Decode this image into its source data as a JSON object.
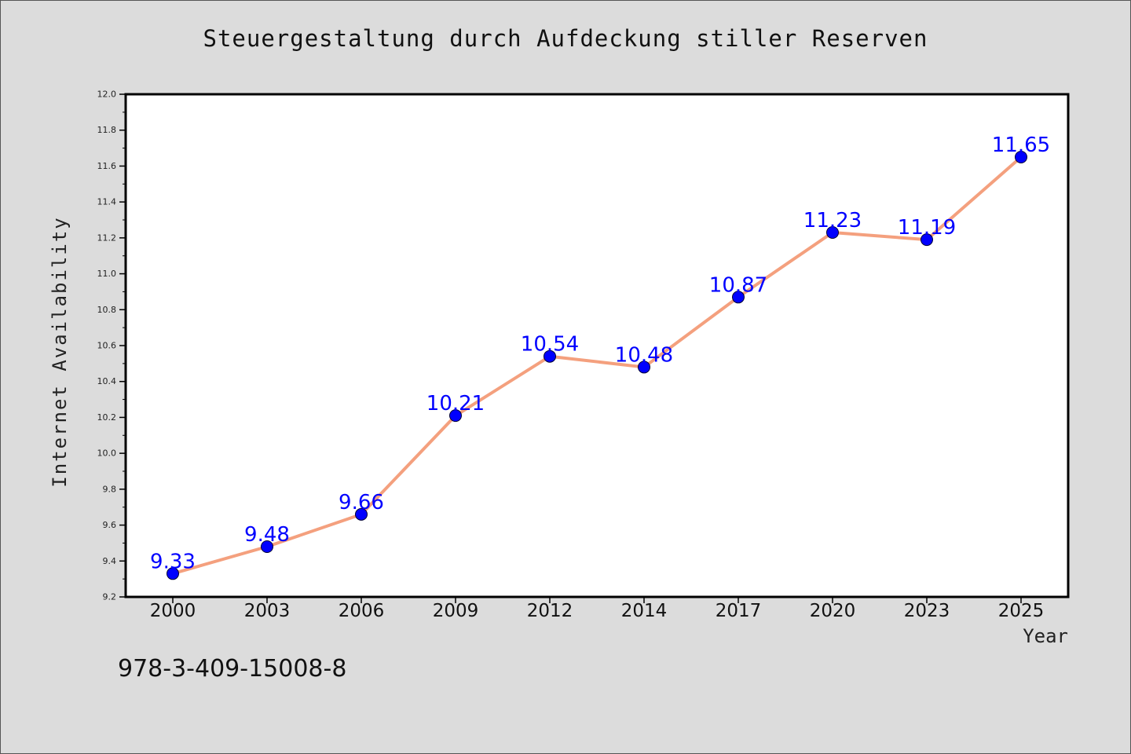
{
  "chart_data": {
    "type": "line",
    "title": "Steuergestaltung durch Aufdeckung stiller Reserven",
    "xlabel": "Year",
    "ylabel": "Internet Availability",
    "categories": [
      "2000",
      "2003",
      "2006",
      "2009",
      "2012",
      "2014",
      "2017",
      "2020",
      "2023",
      "2025"
    ],
    "values": [
      9.33,
      9.48,
      9.66,
      10.21,
      10.54,
      10.48,
      10.87,
      11.23,
      11.19,
      11.65
    ],
    "value_labels": [
      "9.33",
      "9.48",
      "9.66",
      "10.21",
      "10.54",
      "10.48",
      "10.87",
      "11.23",
      "11.19",
      "11.65"
    ],
    "ylim": [
      9.2,
      12.0
    ],
    "yticks": [
      "9.2",
      "9.4",
      "9.6",
      "9.8",
      "10.0",
      "10.2",
      "10.4",
      "10.6",
      "10.8",
      "11.0",
      "11.2",
      "11.4",
      "11.6",
      "11.8",
      "12.0"
    ],
    "grid": false,
    "colors": {
      "line": "#f4a07e",
      "marker": "#0000ff",
      "label": "#0000ff",
      "plot_background": "#ffffff",
      "page_background": "#dcdcdc"
    }
  },
  "footer_code": "978-3-409-15008-8"
}
